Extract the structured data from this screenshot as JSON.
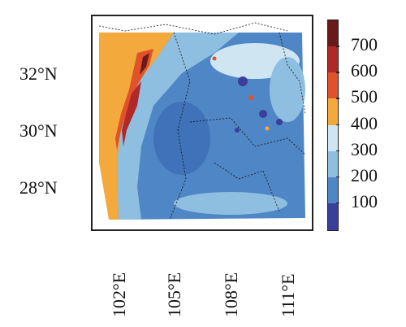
{
  "map": {
    "y_ticks": [
      "32°N",
      "30°N",
      "28°N"
    ],
    "x_ticks": [
      "102°E",
      "105°E",
      "108°E",
      "111°E"
    ]
  },
  "colorbar": {
    "ticks": [
      "700",
      "600",
      "500",
      "400",
      "300",
      "200",
      "100"
    ],
    "colors": [
      "#6b1a1a",
      "#b2282a",
      "#e0522a",
      "#f4a93c",
      "#cfe6f2",
      "#8fbfe0",
      "#4f86c6",
      "#3a3f9a"
    ]
  }
}
